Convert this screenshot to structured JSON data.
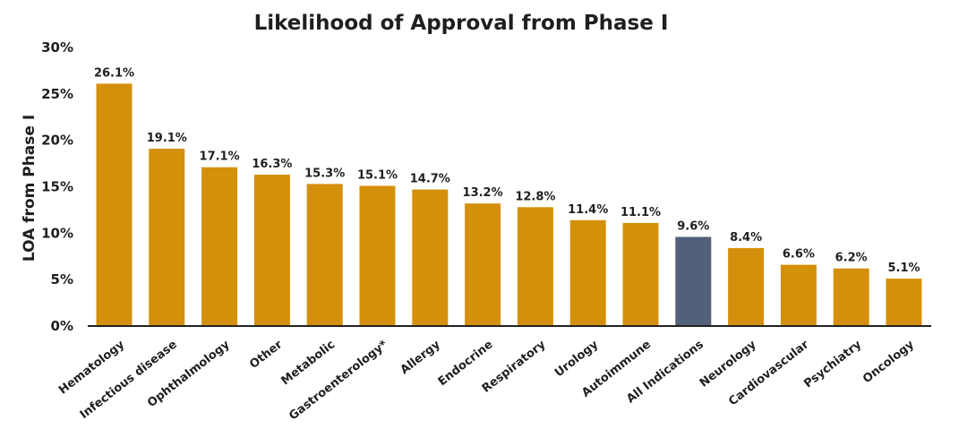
{
  "chart_data": {
    "type": "bar",
    "title": "Likelihood of Approval from Phase I",
    "xlabel": "",
    "ylabel": "LOA from Phase I",
    "ylim": [
      0,
      30
    ],
    "yticks": [
      0,
      5,
      10,
      15,
      20,
      25,
      30
    ],
    "ytick_labels": [
      "0%",
      "5%",
      "10%",
      "15%",
      "20%",
      "25%",
      "30%"
    ],
    "grid": false,
    "categories": [
      "Hematology",
      "Infectious disease",
      "Ophthalmology",
      "Other",
      "Metabolic",
      "Gastroenterology*",
      "Allergy",
      "Endocrine",
      "Respiratory",
      "Urology",
      "Autoimmune",
      "All Indications",
      "Neurology",
      "Cardiovascular",
      "Psychiatry",
      "Oncology"
    ],
    "values": [
      26.1,
      19.1,
      17.1,
      16.3,
      15.3,
      15.1,
      14.7,
      13.2,
      12.8,
      11.4,
      11.1,
      9.6,
      8.4,
      6.6,
      6.2,
      5.1
    ],
    "value_labels": [
      "26.1%",
      "19.1%",
      "17.1%",
      "16.3%",
      "15.3%",
      "15.1%",
      "14.7%",
      "13.2%",
      "12.8%",
      "11.4%",
      "11.1%",
      "9.6%",
      "8.4%",
      "6.6%",
      "6.2%",
      "5.1%"
    ],
    "colors": {
      "default_bar": "#D4900A",
      "highlight_bar": "#526079",
      "highlight_category": "All Indications"
    }
  }
}
